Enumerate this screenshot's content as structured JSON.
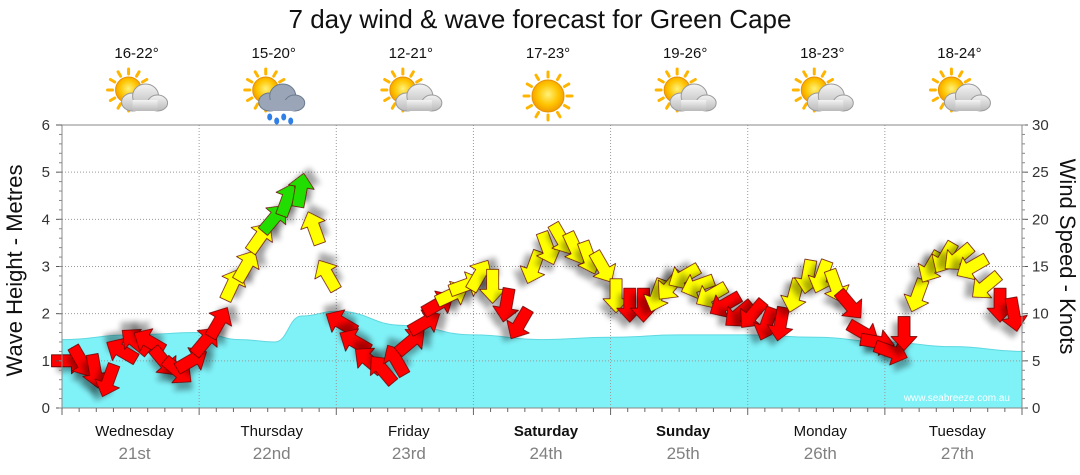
{
  "title": "7 day wind & wave forecast for Green Cape",
  "watermark": "www.seabreeze.com.au",
  "days": [
    {
      "name": "Wednesday",
      "date": "21st",
      "temp": "16-22°",
      "weather": "partly-cloudy",
      "weekend": false
    },
    {
      "name": "Thursday",
      "date": "22nd",
      "temp": "15-20°",
      "weather": "showers",
      "weekend": false
    },
    {
      "name": "Friday",
      "date": "23rd",
      "temp": "12-21°",
      "weather": "partly-cloudy",
      "weekend": false
    },
    {
      "name": "Saturday",
      "date": "24th",
      "temp": "17-23°",
      "weather": "sunny",
      "weekend": true
    },
    {
      "name": "Sunday",
      "date": "25th",
      "temp": "19-26°",
      "weather": "partly-cloudy",
      "weekend": true
    },
    {
      "name": "Monday",
      "date": "26th",
      "temp": "18-23°",
      "weather": "partly-cloudy",
      "weekend": false
    },
    {
      "name": "Tuesday",
      "date": "27th",
      "temp": "18-24°",
      "weather": "partly-cloudy",
      "weekend": false
    }
  ],
  "colors": {
    "wave_fill": "#7ff2f8",
    "wind_low": "#ff0000",
    "wind_mid": "#ffff00",
    "wind_high": "#22dd00",
    "grid": "#999999"
  },
  "chart_data": {
    "type": "area",
    "title": "7 day wind & wave forecast for Green Cape",
    "x_unit": "days",
    "x_range": [
      0,
      7
    ],
    "grid": true,
    "y_left": {
      "label": "Wave Height - Metres",
      "min": 0,
      "max": 6,
      "ticks": [
        0,
        1,
        2,
        3,
        4,
        5,
        6
      ]
    },
    "y_right": {
      "label": "Wind Speed - Knots",
      "min": 0,
      "max": 30,
      "ticks": [
        0,
        5,
        10,
        15,
        20,
        25,
        30
      ]
    },
    "series": [
      {
        "name": "Wave Height",
        "axis": "left",
        "x": [
          0,
          0.5,
          1.0,
          1.3,
          1.55,
          1.75,
          2.0,
          2.5,
          3.0,
          3.5,
          4.0,
          4.5,
          5.0,
          5.5,
          6.0,
          6.5,
          7.0
        ],
        "values": [
          1.45,
          1.55,
          1.6,
          1.45,
          1.4,
          1.95,
          2.05,
          1.75,
          1.55,
          1.45,
          1.5,
          1.55,
          1.55,
          1.5,
          1.4,
          1.3,
          1.2
        ]
      },
      {
        "name": "Wind Speed",
        "axis": "right",
        "x": [
          0.0,
          0.1,
          0.2,
          0.3,
          0.4,
          0.5,
          0.6,
          0.7,
          0.8,
          0.9,
          1.0,
          1.1,
          1.2,
          1.3,
          1.4,
          1.5,
          1.6,
          1.7,
          1.8,
          1.9,
          2.0,
          2.1,
          2.2,
          2.3,
          2.4,
          2.5,
          2.6,
          2.7,
          2.8,
          2.9,
          3.0,
          3.1,
          3.2,
          3.3,
          3.4,
          3.5,
          3.6,
          3.7,
          3.8,
          3.9,
          4.0,
          4.1,
          4.2,
          4.3,
          4.4,
          4.5,
          4.6,
          4.7,
          4.8,
          4.9,
          5.0,
          5.1,
          5.2,
          5.3,
          5.4,
          5.5,
          5.6,
          5.7,
          5.8,
          5.9,
          6.0,
          6.1,
          6.2,
          6.3,
          6.4,
          6.5,
          6.6,
          6.7,
          6.8,
          6.9
        ],
        "values": [
          5,
          5,
          4,
          3,
          6,
          7,
          7,
          5,
          4,
          5,
          7,
          9,
          13,
          15,
          18,
          20,
          22,
          23,
          19,
          14,
          9,
          7,
          5,
          4,
          5,
          7,
          9,
          11,
          12,
          13,
          14,
          13,
          11,
          9,
          15,
          17,
          18,
          17,
          16,
          15,
          12,
          11,
          11,
          12,
          13,
          14,
          13,
          12,
          11,
          10,
          10,
          9,
          9,
          12,
          14,
          14,
          13,
          11,
          8,
          7,
          6,
          8,
          12,
          15,
          16,
          16,
          15,
          13,
          11,
          10
        ],
        "direction_deg": [
          90,
          150,
          170,
          200,
          300,
          310,
          300,
          140,
          130,
          60,
          40,
          30,
          25,
          30,
          35,
          40,
          20,
          10,
          340,
          330,
          300,
          300,
          310,
          320,
          330,
          50,
          60,
          60,
          65,
          70,
          30,
          180,
          190,
          210,
          200,
          160,
          150,
          155,
          160,
          150,
          180,
          180,
          180,
          200,
          220,
          240,
          250,
          240,
          240,
          230,
          220,
          200,
          190,
          195,
          190,
          200,
          160,
          140,
          120,
          100,
          110,
          180,
          200,
          210,
          210,
          230,
          240,
          230,
          180,
          170
        ]
      }
    ]
  }
}
